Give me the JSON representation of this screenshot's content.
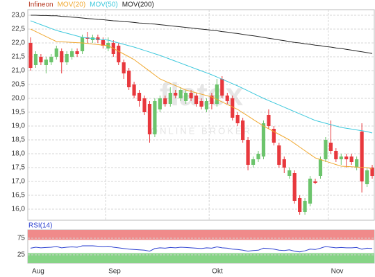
{
  "chart_data": [
    {
      "type": "candlestick",
      "categories": [
        "Aug",
        null,
        null,
        null,
        null,
        null,
        null,
        null,
        null,
        null,
        null,
        null,
        null,
        null,
        null,
        "Sep",
        null,
        null,
        null,
        null,
        null,
        null,
        null,
        null,
        null,
        null,
        null,
        null,
        null,
        null,
        null,
        null,
        null,
        null,
        null,
        "Okt",
        null,
        null,
        null,
        null,
        null,
        null,
        null,
        null,
        null,
        null,
        null,
        null,
        null,
        null,
        null,
        null,
        null,
        null,
        null,
        null,
        null,
        null,
        "Nov",
        null,
        null,
        null,
        null,
        null,
        null,
        null,
        null
      ],
      "series": [
        {
          "name": "Infineon",
          "color": "#b5361e",
          "up_color": "#6cc46c",
          "down_color": "#e8383d",
          "open": [
            22.0,
            21.2,
            21.5,
            21.2,
            21.3,
            21.5,
            21.7,
            21.3,
            21.5,
            21.7,
            21.7,
            22.2,
            22.1,
            22.2,
            22.1,
            21.8,
            22.0,
            21.9,
            21.3,
            21.0,
            20.5,
            20.2,
            20.0,
            19.8,
            18.7,
            19.6,
            20.0,
            19.8,
            20.2,
            20.0,
            19.9,
            20.2,
            20.1,
            19.9,
            19.6,
            20.1,
            19.8,
            20.7,
            20.1,
            20.0,
            19.4,
            19.2,
            18.5,
            17.6,
            17.8,
            17.9,
            19.4,
            18.9,
            18.3,
            17.8,
            17.2,
            17.3,
            16.4,
            15.9,
            16.2,
            17.0,
            17.2,
            17.8,
            18.4,
            18.1,
            17.8,
            17.9,
            17.9,
            17.5,
            18.8,
            16.9,
            17.5
          ],
          "high": [
            22.2,
            21.7,
            21.6,
            21.5,
            21.6,
            21.9,
            21.8,
            21.7,
            21.8,
            21.8,
            22.3,
            22.4,
            22.3,
            22.3,
            22.2,
            22.2,
            22.1,
            22.0,
            21.4,
            21.1,
            20.6,
            20.3,
            20.1,
            19.9,
            20.0,
            20.1,
            20.1,
            20.4,
            20.3,
            20.4,
            20.3,
            20.3,
            20.2,
            20.0,
            20.0,
            20.2,
            20.7,
            20.8,
            20.2,
            20.1,
            19.5,
            19.3,
            18.6,
            17.9,
            18.1,
            19.2,
            19.6,
            19.0,
            18.4,
            17.9,
            17.5,
            17.4,
            16.5,
            16.4,
            17.2,
            17.1,
            17.9,
            18.6,
            19.2,
            18.2,
            18.0,
            18.0,
            18.0,
            17.9,
            19.1,
            17.5,
            17.6
          ],
          "low": [
            21.0,
            21.1,
            21.2,
            20.9,
            21.2,
            21.4,
            20.9,
            21.2,
            21.4,
            21.5,
            21.6,
            22.0,
            22.0,
            22.0,
            21.8,
            21.7,
            21.5,
            21.2,
            20.7,
            20.3,
            20.0,
            19.7,
            19.4,
            18.4,
            18.6,
            19.5,
            19.7,
            19.7,
            20.0,
            19.9,
            19.8,
            19.9,
            19.7,
            19.6,
            19.5,
            19.6,
            19.7,
            20.0,
            19.8,
            19.2,
            19.0,
            18.4,
            17.4,
            17.5,
            17.7,
            17.8,
            18.9,
            18.3,
            17.5,
            17.3,
            17.1,
            16.2,
            15.8,
            15.8,
            16.1,
            16.9,
            17.1,
            17.7,
            18.0,
            17.7,
            17.6,
            17.5,
            17.6,
            17.4,
            16.6,
            16.8,
            17.1
          ],
          "close": [
            21.1,
            21.6,
            21.3,
            21.4,
            21.5,
            21.8,
            21.3,
            21.6,
            21.7,
            21.6,
            22.2,
            22.15,
            22.2,
            22.1,
            21.9,
            22.0,
            21.6,
            21.3,
            20.9,
            20.4,
            20.1,
            19.9,
            19.5,
            18.7,
            19.9,
            20.0,
            19.8,
            20.2,
            20.1,
            20.3,
            20.2,
            20.0,
            19.8,
            19.7,
            19.9,
            19.8,
            20.5,
            20.1,
            19.9,
            19.3,
            19.1,
            18.5,
            17.6,
            17.8,
            18.0,
            19.1,
            19.0,
            18.4,
            17.6,
            17.5,
            17.4,
            16.3,
            15.9,
            16.3,
            17.1,
            16.95,
            17.8,
            18.5,
            18.1,
            17.8,
            17.9,
            17.8,
            17.7,
            17.8,
            17.0,
            17.4,
            17.2
          ]
        },
        {
          "name": "MOV(20)",
          "color": "#f0a830",
          "values": [
            22.5,
            22.41,
            22.32,
            22.23,
            22.14,
            22.05,
            22.04,
            22.03,
            22.02,
            22.01,
            22.0,
            21.98,
            21.96,
            21.94,
            21.92,
            21.9,
            21.8,
            21.7,
            21.6,
            21.5,
            21.4,
            21.26,
            21.12,
            20.98,
            20.84,
            20.7,
            20.62,
            20.54,
            20.46,
            20.38,
            20.3,
            20.25,
            20.2,
            20.15,
            20.1,
            20.05,
            19.96,
            19.87,
            19.78,
            19.69,
            19.6,
            19.48,
            19.36,
            19.24,
            19.12,
            19.0,
            18.9,
            18.8,
            18.7,
            18.6,
            18.5,
            18.37,
            18.24,
            18.11,
            17.98,
            17.85,
            17.79,
            17.73,
            17.67,
            17.61,
            17.55,
            17.54,
            17.53,
            17.52,
            17.51,
            17.5,
            17.45
          ]
        },
        {
          "name": "MOV(50)",
          "color": "#3cc8dc",
          "values": [
            22.8,
            22.73,
            22.66,
            22.59,
            22.52,
            22.45,
            22.4,
            22.35,
            22.3,
            22.25,
            22.2,
            22.18,
            22.16,
            22.14,
            22.12,
            22.1,
            22.05,
            22.0,
            21.95,
            21.9,
            21.85,
            21.79,
            21.73,
            21.67,
            21.61,
            21.55,
            21.48,
            21.41,
            21.34,
            21.27,
            21.2,
            21.13,
            21.06,
            20.99,
            20.92,
            20.85,
            20.77,
            20.69,
            20.61,
            20.53,
            20.45,
            20.36,
            20.27,
            20.18,
            20.09,
            20.0,
            19.92,
            19.84,
            19.76,
            19.68,
            19.6,
            19.52,
            19.44,
            19.36,
            19.28,
            19.2,
            19.15,
            19.1,
            19.05,
            19.0,
            18.95,
            18.92,
            18.89,
            18.86,
            18.83,
            18.8,
            18.75
          ]
        },
        {
          "name": "MOV(200)",
          "color": "#222222",
          "values": [
            23.0,
            23.0,
            22.99,
            22.99,
            22.98,
            22.98,
            22.96,
            22.95,
            22.93,
            22.92,
            22.9,
            22.88,
            22.87,
            22.85,
            22.84,
            22.82,
            22.8,
            22.79,
            22.77,
            22.76,
            22.74,
            22.72,
            22.71,
            22.69,
            22.68,
            22.66,
            22.64,
            22.62,
            22.6,
            22.58,
            22.56,
            22.54,
            22.52,
            22.5,
            22.48,
            22.46,
            22.44,
            22.41,
            22.39,
            22.36,
            22.34,
            22.31,
            22.28,
            22.26,
            22.23,
            22.2,
            22.17,
            22.14,
            22.11,
            22.08,
            22.05,
            22.02,
            22.0,
            21.97,
            21.95,
            21.92,
            21.9,
            21.87,
            21.85,
            21.82,
            21.8,
            21.77,
            21.74,
            21.71,
            21.68,
            21.65,
            21.62
          ]
        }
      ],
      "ylim": [
        15.6,
        23.2
      ],
      "yticks": [
        {
          "value": 16,
          "label": "16,0"
        },
        {
          "value": 16.5,
          "label": "16,5"
        },
        {
          "value": 17,
          "label": "17,0"
        },
        {
          "value": 17.5,
          "label": "17,5"
        },
        {
          "value": 18,
          "label": "18,0"
        },
        {
          "value": 18.5,
          "label": "18,5"
        },
        {
          "value": 19,
          "label": "19,0"
        },
        {
          "value": 19.5,
          "label": "19,5"
        },
        {
          "value": 20,
          "label": "20,0"
        },
        {
          "value": 20.5,
          "label": "20,5"
        },
        {
          "value": 21,
          "label": "21,0"
        },
        {
          "value": 21.5,
          "label": "21,5"
        },
        {
          "value": 22,
          "label": "22,0"
        },
        {
          "value": 22.5,
          "label": "22,5"
        },
        {
          "value": 23,
          "label": "23,0"
        }
      ],
      "grid": true,
      "watermark": "flatex",
      "watermark_sub": "ONLINE BROKER"
    },
    {
      "type": "line",
      "series": [
        {
          "name": "RSI(14)",
          "color": "#2a3fd0",
          "values": [
            45,
            48,
            46,
            47,
            48,
            50,
            46,
            48,
            49,
            48,
            52,
            52,
            52,
            51,
            50,
            51,
            48,
            46,
            44,
            42,
            41,
            40,
            39,
            36,
            44,
            46,
            45,
            47,
            46,
            48,
            47,
            46,
            45,
            44,
            46,
            45,
            49,
            46,
            45,
            42,
            41,
            39,
            36,
            38,
            39,
            45,
            44,
            42,
            39,
            38,
            40,
            36,
            34,
            37,
            42,
            41,
            45,
            50,
            48,
            46,
            47,
            46,
            46,
            47,
            42,
            45,
            44
          ]
        }
      ],
      "ylim": [
        0,
        100
      ],
      "yticks": [
        25,
        75
      ],
      "bands": [
        {
          "from": 70,
          "to": 100,
          "color": "#f08a8a"
        },
        {
          "from": 0,
          "to": 30,
          "color": "#86d486"
        }
      ]
    }
  ]
}
